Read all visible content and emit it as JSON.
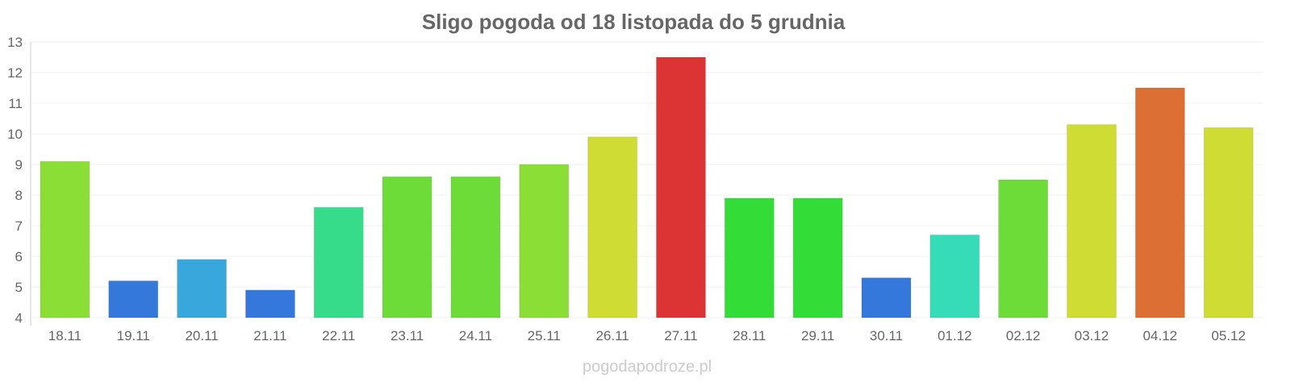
{
  "chart_data": {
    "type": "bar",
    "title": "Sligo pogoda od 18 listopada do 5 grudnia",
    "xlabel": "",
    "ylabel": "",
    "ylim": [
      4,
      13
    ],
    "yticks": [
      4,
      5,
      6,
      7,
      8,
      9,
      10,
      11,
      12,
      13
    ],
    "grid": true,
    "categories": [
      "18.11",
      "19.11",
      "20.11",
      "21.11",
      "22.11",
      "23.11",
      "24.11",
      "25.11",
      "26.11",
      "27.11",
      "28.11",
      "29.11",
      "30.11",
      "01.12",
      "02.12",
      "03.12",
      "04.12",
      "05.12"
    ],
    "values": [
      9.1,
      5.2,
      5.9,
      4.9,
      7.6,
      8.6,
      8.6,
      9.0,
      9.9,
      12.5,
      7.9,
      7.9,
      5.3,
      6.7,
      8.5,
      10.3,
      11.5,
      10.2
    ],
    "colors": [
      "#8ade35",
      "#3478dc",
      "#38a8dc",
      "#3478dc",
      "#36dc8a",
      "#6ddc38",
      "#6ddc38",
      "#8ade35",
      "#cfdc34",
      "#dc3434",
      "#34dc38",
      "#34dc38",
      "#3478dc",
      "#36dcb8",
      "#6ddc38",
      "#cfdc34",
      "#dc7034",
      "#cfdc34"
    ]
  },
  "footer": "pogodapodroze.pl"
}
